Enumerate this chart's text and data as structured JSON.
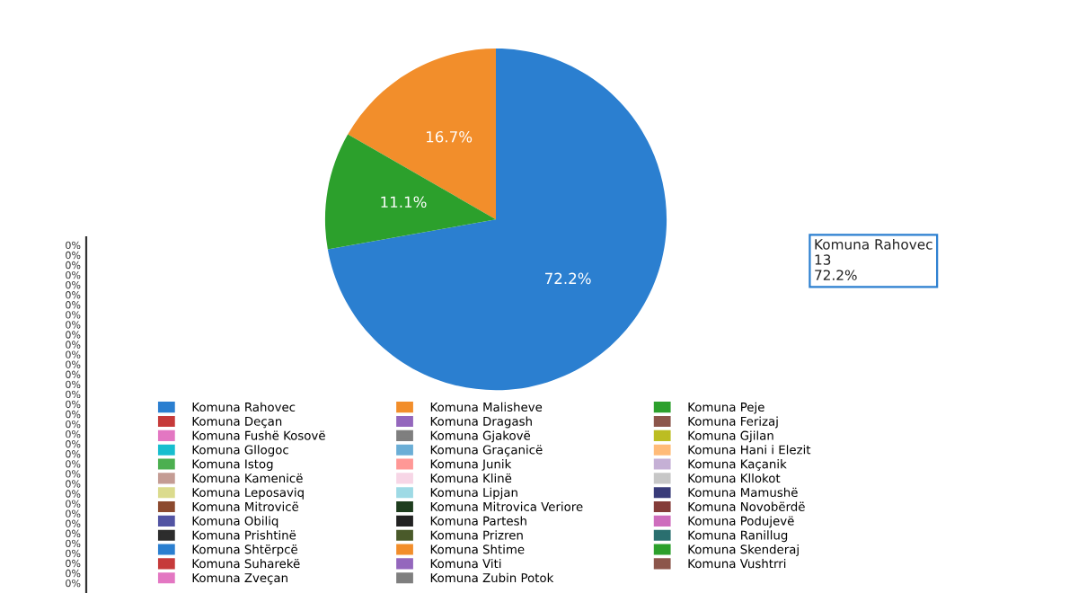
{
  "chart_data": {
    "type": "pie",
    "categories": [
      "Komuna Rahovec",
      "Komuna Malisheve",
      "Komuna Peje",
      "Komuna Deçan",
      "Komuna Dragash",
      "Komuna Ferizaj",
      "Komuna Fushë Kosovë",
      "Komuna Gjakovë",
      "Komuna Gjilan",
      "Komuna Gllogoc",
      "Komuna Graçanicë",
      "Komuna Hani i Elezit",
      "Komuna Istog",
      "Komuna Junik",
      "Komuna Kaçanik",
      "Komuna Kamenicë",
      "Komuna Klinë",
      "Komuna Kllokot",
      "Komuna Leposaviq",
      "Komuna Lipjan",
      "Komuna Mamushë",
      "Komuna Mitrovicë",
      "Komuna Mitrovica Veriore",
      "Komuna Novobërdë",
      "Komuna Obiliq",
      "Komuna Partesh",
      "Komuna Podujevë",
      "Komuna Prishtinë",
      "Komuna Prizren",
      "Komuna Ranillug",
      "Komuna Shtërpcë",
      "Komuna Shtime",
      "Komuna Skenderaj",
      "Komuna Suharekë",
      "Komuna Viti",
      "Komuna Vushtrri",
      "Komuna Zveçan",
      "Komuna Zubin Potok"
    ],
    "values": [
      72.2,
      16.7,
      11.1,
      0,
      0,
      0,
      0,
      0,
      0,
      0,
      0,
      0,
      0,
      0,
      0,
      0,
      0,
      0,
      0,
      0,
      0,
      0,
      0,
      0,
      0,
      0,
      0,
      0,
      0,
      0,
      0,
      0,
      0,
      0,
      0,
      0,
      0,
      0
    ],
    "value_labels": [
      "72.2%",
      "16.7%",
      "11.1%",
      "0%",
      "0%",
      "0%",
      "0%",
      "0%",
      "0%",
      "0%",
      "0%",
      "0%",
      "0%",
      "0%",
      "0%",
      "0%",
      "0%",
      "0%",
      "0%",
      "0%",
      "0%",
      "0%",
      "0%",
      "0%",
      "0%",
      "0%",
      "0%",
      "0%",
      "0%",
      "0%",
      "0%",
      "0%",
      "0%",
      "0%",
      "0%",
      "0%",
      "0%",
      "0%"
    ],
    "colors": [
      "#2b7fd0",
      "#f28e2b",
      "#2ca02c",
      "#c63a3a",
      "#9467bd",
      "#8c564b",
      "#e377c2",
      "#7f7f7f",
      "#bcbd22",
      "#17becf",
      "#6baed6",
      "#ffbb78",
      "#4caf50",
      "#ff9896",
      "#c5b0d5",
      "#c49c94",
      "#f7d6e6",
      "#c7c7c7",
      "#dbdb8d",
      "#9edae5",
      "#393b79",
      "#8c4a2f",
      "#1e3d1e",
      "#843c39",
      "#5254a3",
      "#222222",
      "#ce6dbd",
      "#2d2d2d",
      "#4a5a2a",
      "#2a6f6f",
      "#2b7fd0",
      "#f28e2b",
      "#2ca02c",
      "#c63a3a",
      "#9467bd",
      "#8c564b",
      "#e377c2",
      "#7f7f7f"
    ],
    "legend": "bottom",
    "annotations": [
      "Komuna Rahovec\n13\n72.2%"
    ]
  }
}
